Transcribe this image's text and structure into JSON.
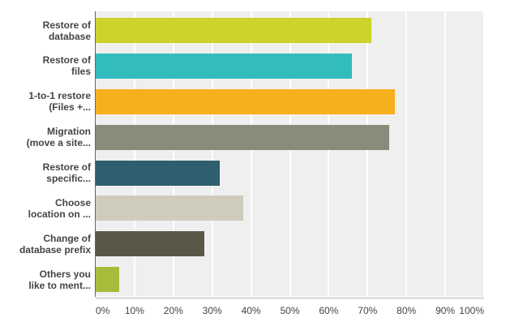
{
  "chart_data": {
    "type": "bar",
    "orientation": "horizontal",
    "title": "",
    "xlabel": "",
    "ylabel": "",
    "categories": [
      "Restore of database",
      "Restore of files",
      "1-to-1 restore (Files +...",
      "Migration (move a site...",
      "Restore of specific...",
      "Choose location on ...",
      "Change of database prefix",
      "Others you like to ment..."
    ],
    "category_lines": [
      [
        "Restore of",
        "database"
      ],
      [
        "Restore of",
        "files"
      ],
      [
        "1-to-1 restore",
        "(Files +..."
      ],
      [
        "Migration",
        "(move a site..."
      ],
      [
        "Restore of",
        "specific..."
      ],
      [
        "Choose",
        "location on ..."
      ],
      [
        "Change of",
        "database prefix"
      ],
      [
        "Others you",
        "like to ment..."
      ]
    ],
    "values": [
      71,
      66,
      77,
      75.5,
      32,
      38,
      28,
      6
    ],
    "unit": "%",
    "bar_colors": [
      "#ccd32b",
      "#33bcbe",
      "#f6b01d",
      "#8a8b7b",
      "#2f5f6e",
      "#cfccbd",
      "#5a5749",
      "#a8bc3c"
    ],
    "xlim": [
      0,
      100
    ],
    "x_ticks": [
      "0%",
      "10%",
      "20%",
      "30%",
      "40%",
      "50%",
      "60%",
      "70%",
      "80%",
      "90%",
      "100%"
    ],
    "grid": true,
    "legend": "none",
    "plot_background": "#efefef",
    "gridline_color": "#ffffff",
    "axis_line_color": "#666666",
    "text_color": "#444444"
  }
}
